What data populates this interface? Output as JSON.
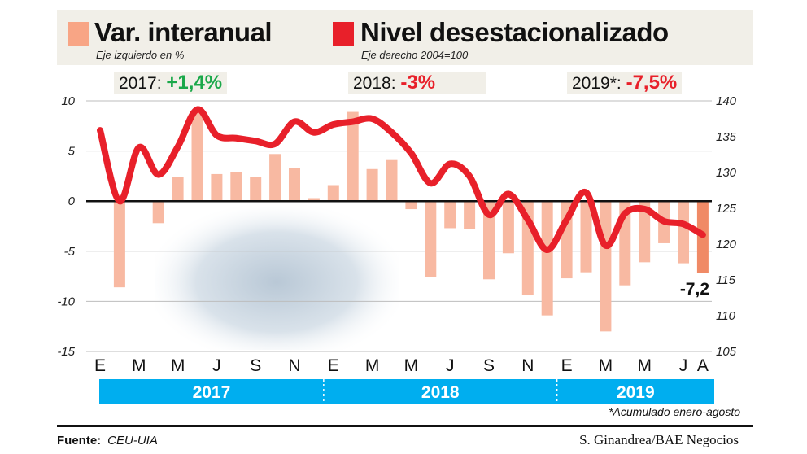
{
  "legend": {
    "bars_label": "Var. interanual",
    "bars_sub": "Eje izquierdo en %",
    "line_label": "Nivel desestacionalizado",
    "line_sub": "Eje derecho 2004=100"
  },
  "annual": [
    {
      "year": "2017:",
      "value": "+1,4%",
      "color": "#1aa84a"
    },
    {
      "year": "2018:",
      "value": "-3%",
      "color": "#e8202a"
    },
    {
      "year": "2019*:",
      "value": "-7,5%",
      "color": "#e8202a"
    }
  ],
  "footnote": "*Acumulado enero-agosto",
  "source_label": "Fuente:",
  "source_value": "CEU-UIA",
  "credit": "S. Ginandrea/BAE Negocios",
  "colors": {
    "bars": "#f8b9a2",
    "last_bar": "#f08a66",
    "line": "#e8202a",
    "year_band": "#00aeef",
    "header_bg": "#f1efe8"
  },
  "chart_data": {
    "type": "bar+line",
    "months": [
      "Ene17",
      "Feb17",
      "Mar17",
      "Abr17",
      "May17",
      "Jun17",
      "Jul17",
      "Ago17",
      "Sep17",
      "Oct17",
      "Nov17",
      "Dic17",
      "Ene18",
      "Feb18",
      "Mar18",
      "Abr18",
      "May18",
      "Jun18",
      "Jul18",
      "Ago18",
      "Sep18",
      "Oct18",
      "Nov18",
      "Dic18",
      "Ene19",
      "Feb19",
      "Mar19",
      "Abr19",
      "May19",
      "Jun19",
      "Jul19",
      "Ago19"
    ],
    "x_tick_labels": [
      "E",
      "",
      "M",
      "",
      "M",
      "",
      "J",
      "",
      "S",
      "",
      "N",
      "",
      "E",
      "",
      "M",
      "",
      "M",
      "",
      "J",
      "",
      "S",
      "",
      "N",
      "",
      "E",
      "",
      "M",
      "",
      "M",
      "",
      "J",
      "A"
    ],
    "years": [
      "2017",
      "2018",
      "2019"
    ],
    "series": [
      {
        "name": "Var. interanual",
        "axis": "left",
        "kind": "bar",
        "values": [
          0,
          -8.6,
          0,
          -2.2,
          2.4,
          8.8,
          2.7,
          2.9,
          2.4,
          4.7,
          3.3,
          0.3,
          1.6,
          8.9,
          3.2,
          4.1,
          -0.8,
          -7.6,
          -2.7,
          -2.8,
          -7.8,
          -5.2,
          -9.4,
          -11.4,
          -7.7,
          -7.1,
          -13.0,
          -8.4,
          -6.1,
          -4.2,
          -6.2,
          -7.2
        ]
      },
      {
        "name": "Nivel desestacionalizado",
        "axis": "right",
        "kind": "line",
        "values": [
          135.9,
          126.0,
          133.5,
          129.7,
          133.6,
          138.8,
          135.2,
          134.8,
          134.4,
          134.0,
          137.1,
          135.6,
          136.7,
          137.1,
          137.5,
          135.6,
          132.7,
          128.5,
          131.2,
          129.5,
          124.1,
          127.0,
          123.4,
          119.2,
          123.4,
          127.2,
          119.8,
          124.3,
          124.9,
          123.2,
          122.8,
          121.3
        ]
      }
    ],
    "y_left": {
      "range": [
        -15,
        10
      ],
      "ticks": [
        "10",
        "5",
        "0",
        "-5",
        "-10",
        "-15"
      ]
    },
    "y_right": {
      "range": [
        105,
        140
      ],
      "ticks": [
        "140",
        "135",
        "130",
        "125",
        "120",
        "115",
        "110",
        "105"
      ]
    },
    "annotation": "-7,2",
    "grid": true
  }
}
